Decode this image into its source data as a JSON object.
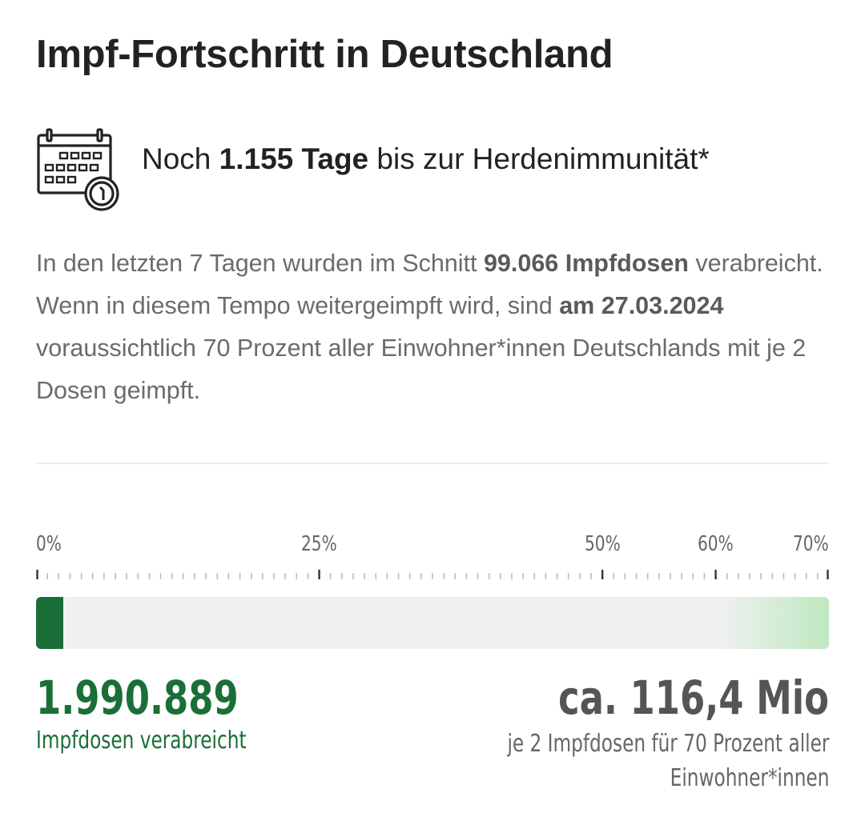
{
  "title": "Impf-Fortschritt in Deutschland",
  "countdown": {
    "icon": "calendar-clock-icon",
    "prefix": "Noch ",
    "days": "1.155 Tage",
    "suffix": " bis zur Herdenimmunität*"
  },
  "description": {
    "part1": "In den letzten 7 Tagen wurden im Schnitt ",
    "avg_doses": "99.066 Impfdosen",
    "part2": " verabreicht. Wenn in diesem Tempo weitergeimpft wird, sind ",
    "date": "am 27.03.2024",
    "part3": " voraussichtlich 70 Prozent aller Einwohner*innen Deutschlands mit je 2 Dosen geimpft."
  },
  "chart_data": {
    "type": "bar",
    "orientation": "horizontal-progress",
    "scale_min": 0,
    "scale_max": 70,
    "tick_labels": [
      {
        "value": 0,
        "label": "0%"
      },
      {
        "value": 25,
        "label": "25%"
      },
      {
        "value": 50,
        "label": "50%"
      },
      {
        "value": 60,
        "label": "60%"
      },
      {
        "value": 70,
        "label": "70%"
      }
    ],
    "progress_percent": 2.4,
    "given": {
      "value": "1.990.889",
      "label": "Impfdosen verabreicht"
    },
    "target": {
      "value": "ca. 116,4 Mio",
      "label_line1": "je 2 Impfdosen für 70 Prozent aller",
      "label_line2": "Einwohner*innen"
    },
    "colors": {
      "fill": "#1a6f38",
      "track": "#f0f0f0",
      "target_glow": "#bfe8c1"
    }
  }
}
